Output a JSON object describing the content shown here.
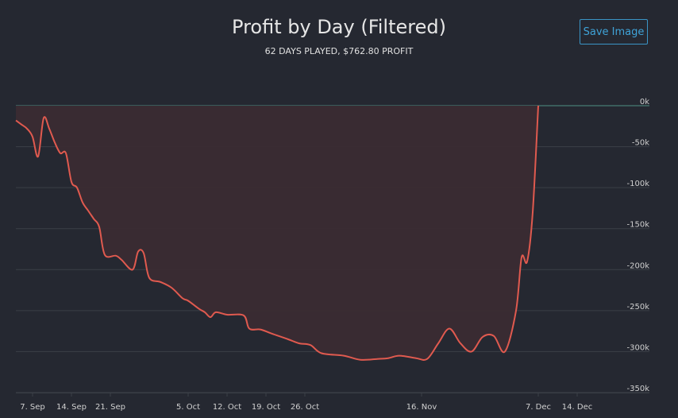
{
  "header": {
    "title": "Profit by Day (Filtered)",
    "subtitle": "62 DAYS PLAYED, $762.80 PROFIT",
    "save_label": "Save Image"
  },
  "colors": {
    "background": "#252831",
    "line": "#e05a4f",
    "fill": "#3a2b33",
    "grid": "#3b3f47",
    "zero_line": "#4f8f83",
    "accent": "#3a95c6"
  },
  "chart_data": {
    "type": "area",
    "title": "Profit by Day (Filtered)",
    "subtitle": "62 DAYS PLAYED, $762.80 PROFIT",
    "xlabel": "",
    "ylabel": "",
    "ylim": [
      -350000,
      0
    ],
    "yticks": [
      0,
      -50000,
      -100000,
      -150000,
      -200000,
      -250000,
      -300000,
      -350000
    ],
    "ytick_labels": [
      "0k",
      "-50k",
      "-100k",
      "-150k",
      "-200k",
      "-250k",
      "-300k",
      "-350k"
    ],
    "xlim": [
      "2019-09-04",
      "2019-12-27"
    ],
    "xticks": [
      {
        "date": "2019-09-07",
        "label": "7. Sep"
      },
      {
        "date": "2019-09-14",
        "label": "14. Sep"
      },
      {
        "date": "2019-09-21",
        "label": "21. Sep"
      },
      {
        "date": "2019-10-05",
        "label": "5. Oct"
      },
      {
        "date": "2019-10-12",
        "label": "12. Oct"
      },
      {
        "date": "2019-10-19",
        "label": "19. Oct"
      },
      {
        "date": "2019-10-26",
        "label": "26. Oct"
      },
      {
        "date": "2019-11-16",
        "label": "16. Nov"
      },
      {
        "date": "2019-12-07",
        "label": "7. Dec"
      },
      {
        "date": "2019-12-14",
        "label": "14. Dec"
      }
    ],
    "grid": true,
    "legend": "none",
    "series": [
      {
        "points": [
          [
            "2019-09-04",
            -18000
          ],
          [
            "2019-09-05",
            -23000
          ],
          [
            "2019-09-06",
            -28000
          ],
          [
            "2019-09-07",
            -38000
          ],
          [
            "2019-09-08",
            -62000
          ],
          [
            "2019-09-09",
            -15000
          ],
          [
            "2019-09-10",
            -28000
          ],
          [
            "2019-09-11",
            -45000
          ],
          [
            "2019-09-12",
            -58000
          ],
          [
            "2019-09-13",
            -58000
          ],
          [
            "2019-09-14",
            -93000
          ],
          [
            "2019-09-15",
            -100000
          ],
          [
            "2019-09-16",
            -118000
          ],
          [
            "2019-09-17",
            -128000
          ],
          [
            "2019-09-18",
            -138000
          ],
          [
            "2019-09-19",
            -148000
          ],
          [
            "2019-09-20",
            -182000
          ],
          [
            "2019-09-22",
            -183000
          ],
          [
            "2019-09-23",
            -188000
          ],
          [
            "2019-09-25",
            -200000
          ],
          [
            "2019-09-26",
            -178000
          ],
          [
            "2019-09-27",
            -180000
          ],
          [
            "2019-09-28",
            -210000
          ],
          [
            "2019-09-30",
            -215000
          ],
          [
            "2019-10-02",
            -222000
          ],
          [
            "2019-10-04",
            -235000
          ],
          [
            "2019-10-05",
            -238000
          ],
          [
            "2019-10-07",
            -248000
          ],
          [
            "2019-10-08",
            -252000
          ],
          [
            "2019-10-09",
            -258000
          ],
          [
            "2019-10-10",
            -252000
          ],
          [
            "2019-10-12",
            -255000
          ],
          [
            "2019-10-15",
            -256000
          ],
          [
            "2019-10-16",
            -272000
          ],
          [
            "2019-10-18",
            -273000
          ],
          [
            "2019-10-20",
            -278000
          ],
          [
            "2019-10-23",
            -285000
          ],
          [
            "2019-10-25",
            -290000
          ],
          [
            "2019-10-27",
            -292000
          ],
          [
            "2019-10-29",
            -302000
          ],
          [
            "2019-11-02",
            -305000
          ],
          [
            "2019-11-05",
            -310000
          ],
          [
            "2019-11-08",
            -309000
          ],
          [
            "2019-11-10",
            -308000
          ],
          [
            "2019-11-12",
            -305000
          ],
          [
            "2019-11-15",
            -308000
          ],
          [
            "2019-11-17",
            -309000
          ],
          [
            "2019-11-19",
            -290000
          ],
          [
            "2019-11-21",
            -272000
          ],
          [
            "2019-11-23",
            -290000
          ],
          [
            "2019-11-25",
            -300000
          ],
          [
            "2019-11-27",
            -282000
          ],
          [
            "2019-11-29",
            -281000
          ],
          [
            "2019-12-01",
            -300000
          ],
          [
            "2019-12-03",
            -250000
          ],
          [
            "2019-12-04",
            -185000
          ],
          [
            "2019-12-05",
            -190000
          ],
          [
            "2019-12-06",
            -130000
          ],
          [
            "2019-12-07",
            0
          ]
        ]
      }
    ]
  }
}
